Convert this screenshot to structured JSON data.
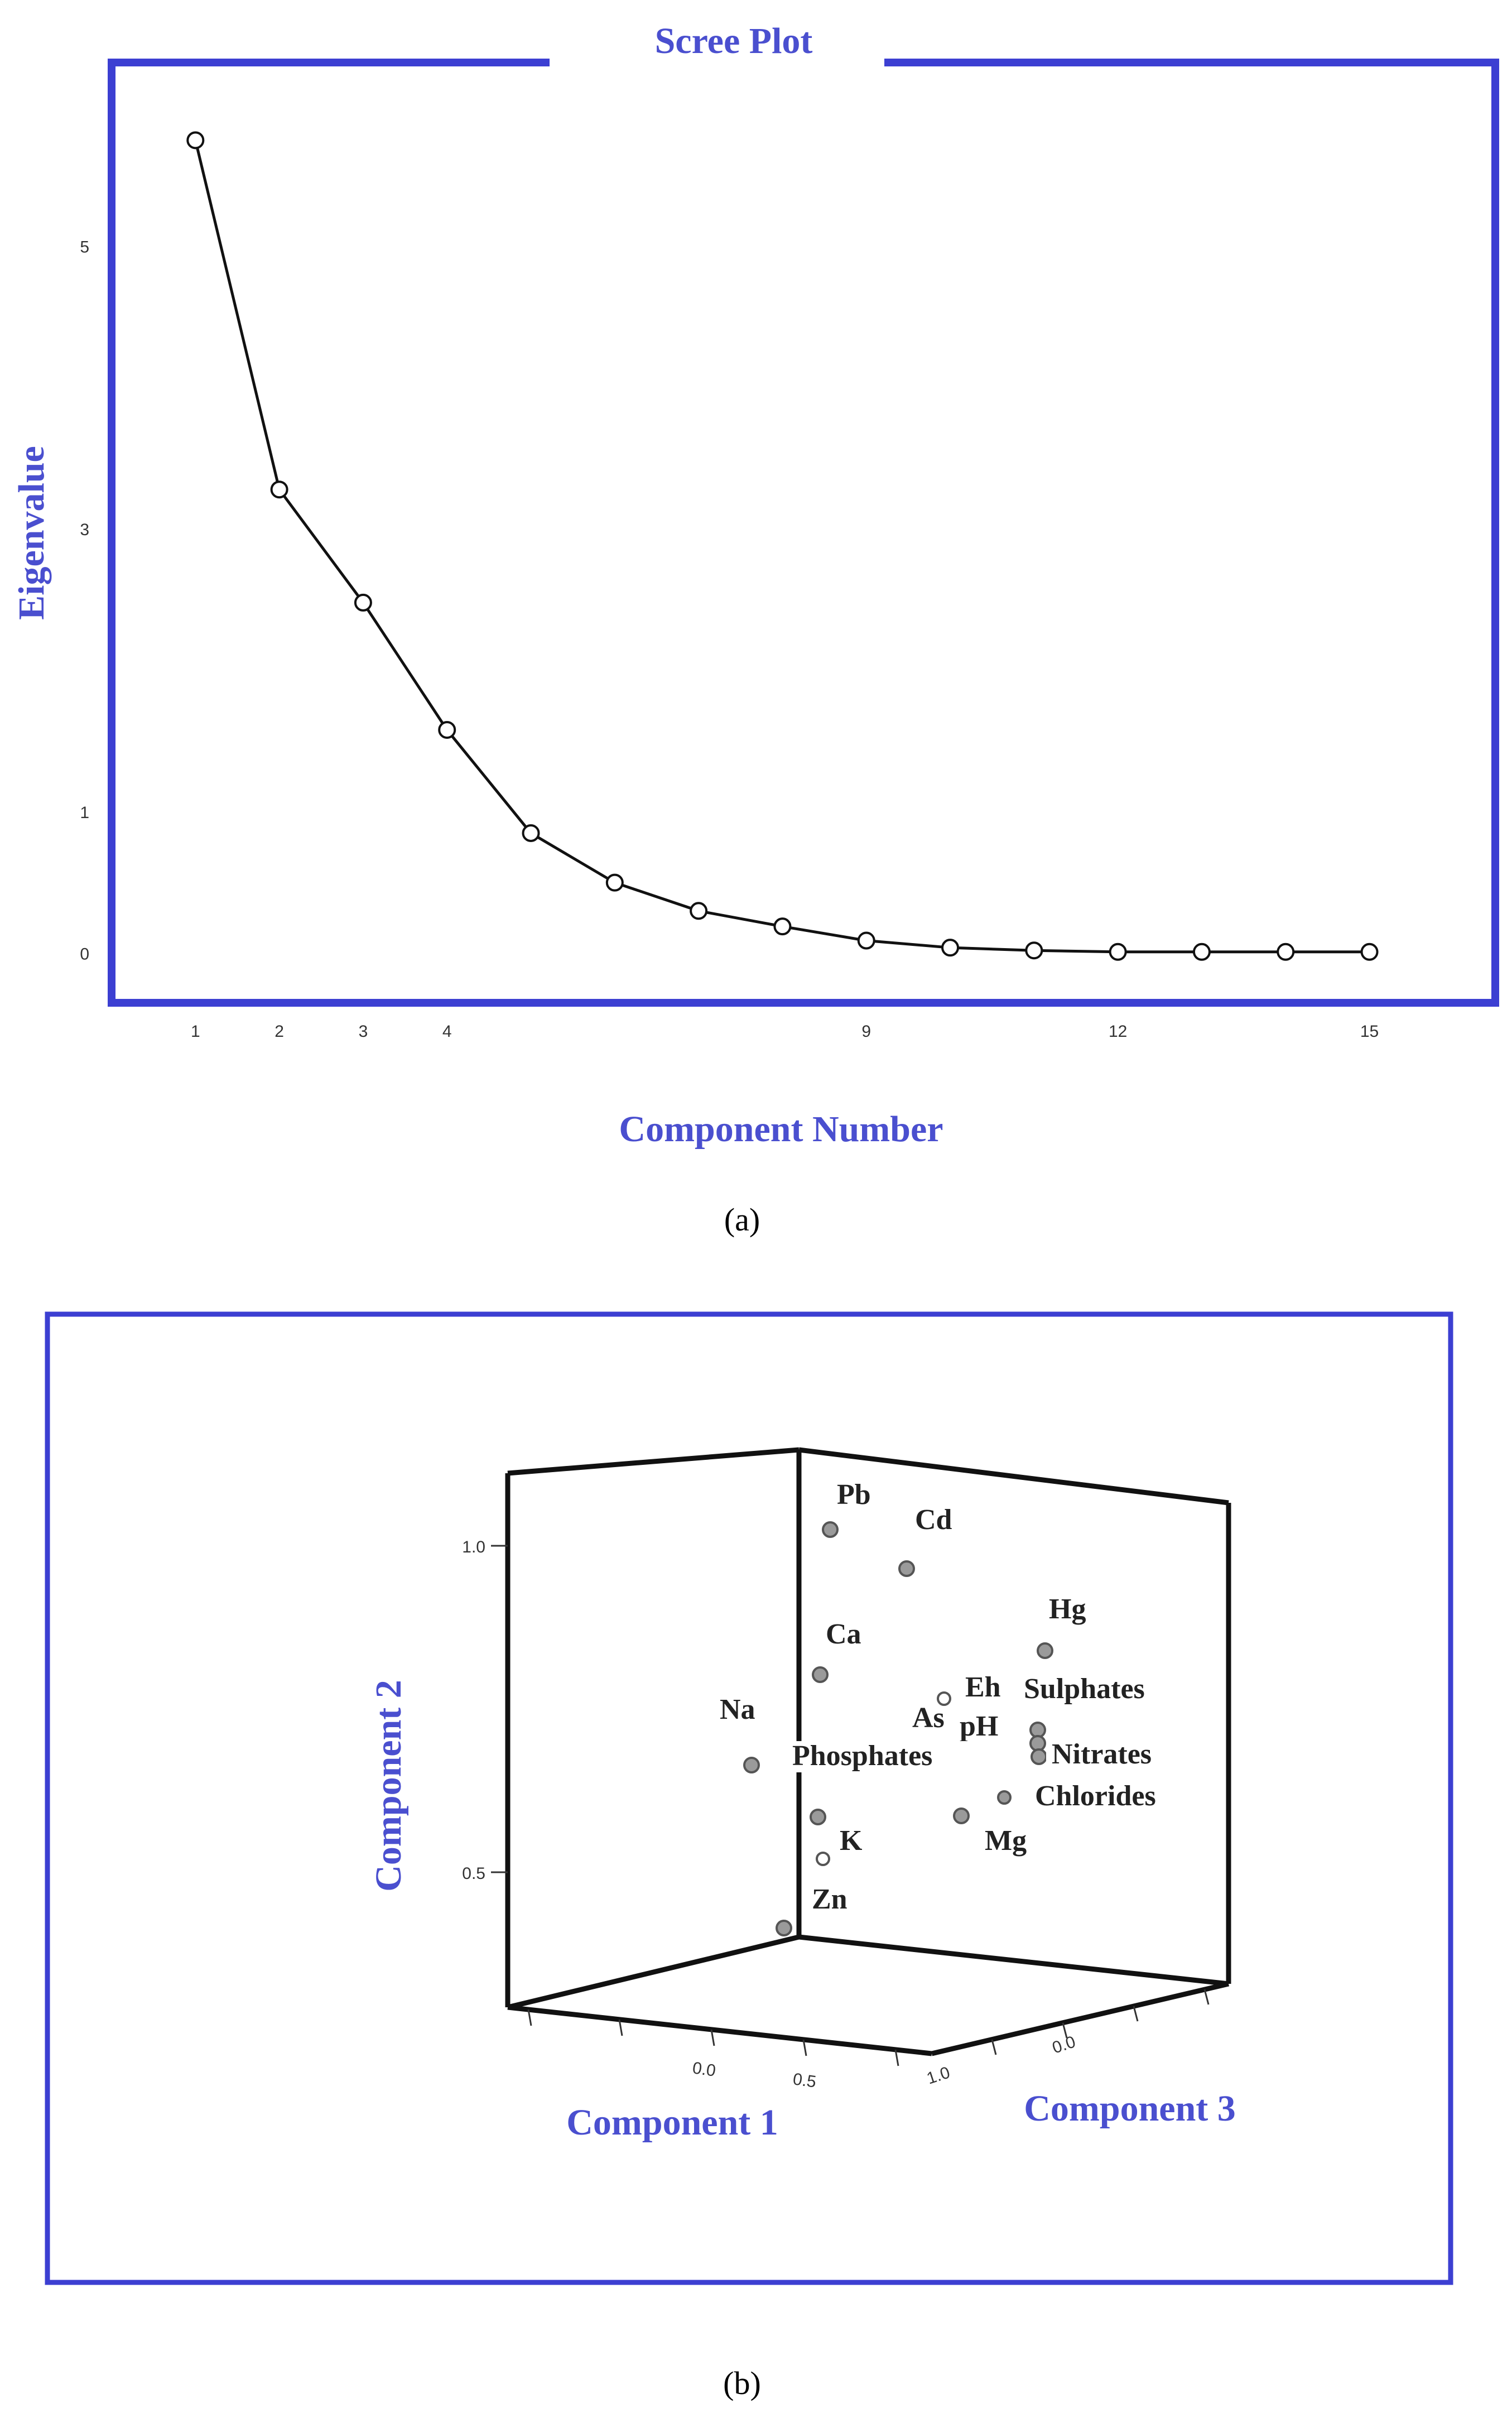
{
  "colors": {
    "frame": "#3c3fd2",
    "axis_label": "#4a4fcf",
    "line": "#111111",
    "marker_fill": "#9a9a9a",
    "marker_stroke": "#444444"
  },
  "panel_a": {
    "caption": "(a)",
    "chart_data": {
      "type": "line",
      "title": "Scree Plot",
      "xlabel": "Component Number",
      "ylabel": "Eigenvalue",
      "x": [
        1,
        2,
        3,
        4,
        5,
        6,
        7,
        8,
        9,
        10,
        11,
        12,
        13,
        14,
        15
      ],
      "y": [
        5.75,
        3.28,
        2.48,
        1.58,
        0.85,
        0.5,
        0.3,
        0.19,
        0.09,
        0.04,
        0.02,
        0.01,
        0.01,
        0.01,
        0.01
      ],
      "xticks": [
        "1",
        "2",
        "3",
        "4",
        "9",
        "12",
        "15"
      ],
      "xtick_values": [
        1,
        2,
        3,
        4,
        9,
        12,
        15
      ],
      "yticks": [
        "0",
        "1",
        "3",
        "5"
      ],
      "ytick_values": [
        0,
        1,
        3,
        5
      ],
      "xlim": [
        0,
        16.5
      ],
      "ylim": [
        -0.35,
        6.3
      ],
      "marker": "open-circle"
    }
  },
  "panel_b": {
    "caption": "(b)",
    "chart_data": {
      "type": "scatter",
      "projection": "3d",
      "xlabel": "Component 1",
      "ylabel": "Component 2",
      "zlabel": "Component 3",
      "y_ticks": [
        "1.0",
        "0.5"
      ],
      "x_ticks": [
        "0.0",
        "0.5"
      ],
      "z_ticks": [
        "1.0",
        "0.0"
      ],
      "points": [
        {
          "label": "Pb",
          "y": 1.0
        },
        {
          "label": "Cd",
          "y": 0.95
        },
        {
          "label": "Hg",
          "y": 0.82
        },
        {
          "label": "Ca",
          "y": 0.78
        },
        {
          "label": "Eh",
          "y": 0.75
        },
        {
          "label": "As",
          "y": 0.72
        },
        {
          "label": "pH",
          "y": 0.7
        },
        {
          "label": "Sulphates",
          "y": 0.7
        },
        {
          "label": "Na",
          "y": 0.64
        },
        {
          "label": "Nitrates",
          "y": 0.66
        },
        {
          "label": "Phosphates",
          "y": 0.57
        },
        {
          "label": "Chlorides",
          "y": 0.59
        },
        {
          "label": "Mg",
          "y": 0.56
        },
        {
          "label": "K",
          "y": 0.5
        },
        {
          "label": "Zn",
          "y": 0.38
        }
      ]
    }
  }
}
